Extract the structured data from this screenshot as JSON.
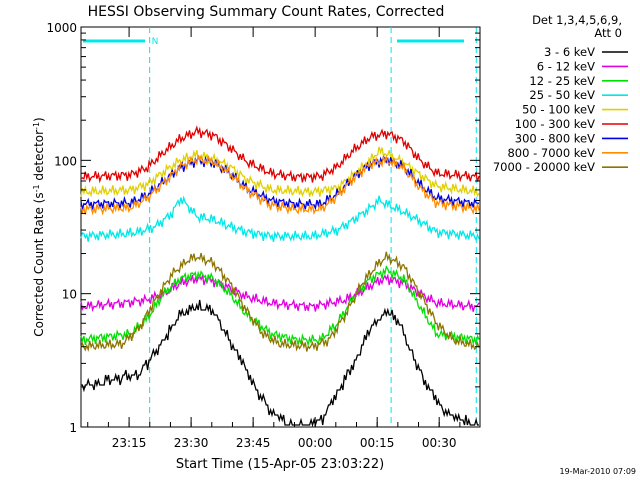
{
  "chart_data": {
    "type": "line",
    "title": "HESSI Observing Summary Count Rates, Corrected",
    "xlabel": "Start Time (15-Apr-05 23:03:22)",
    "ylabel_main": "Corrected Count Rate (s",
    "ylabel_sup1": "-1",
    "ylabel_mid": " detector",
    "ylabel_sup2": "-1",
    "ylabel_end": ")",
    "y_scale": "log",
    "ylim": [
      1,
      1000
    ],
    "xlim_minutes_after_start": [
      0,
      96.5
    ],
    "x_ticks": [
      {
        "label": "23:15",
        "minute": 11.63
      },
      {
        "label": "23:30",
        "minute": 26.63
      },
      {
        "label": "23:45",
        "minute": 41.63
      },
      {
        "label": "00:00",
        "minute": 56.63
      },
      {
        "label": "00:15",
        "minute": 71.63
      },
      {
        "label": "00:30",
        "minute": 86.63
      }
    ],
    "y_ticks": [
      {
        "label": "1",
        "value": 1
      },
      {
        "label": "10",
        "value": 10
      },
      {
        "label": "100",
        "value": 100
      },
      {
        "label": "1000",
        "value": 1000
      }
    ],
    "legend_header": [
      "Det 1,3,4,5,6,9,",
      "Att 0"
    ],
    "legend_position": "right",
    "flag_label": "N",
    "footer": "19-Mar-2010 07:09",
    "night_markers_minutes": [
      16.6,
      75.0,
      95.6
    ],
    "series": [
      {
        "name": "3 - 6 keV",
        "color": "#000000",
        "x": [
          0,
          14,
          20,
          24,
          28,
          32,
          35,
          38,
          42,
          46,
          52,
          58,
          62,
          66,
          70,
          74,
          77,
          80,
          84,
          88,
          96
        ],
        "y": [
          2,
          2.5,
          4.5,
          7,
          8,
          7.5,
          5,
          3.5,
          2,
          1.3,
          1,
          1.1,
          1.8,
          3,
          5.5,
          7.5,
          6,
          3.5,
          2,
          1.3,
          1
        ]
      },
      {
        "name": "6 - 12 keV",
        "color": "#e000e0",
        "x": [
          0,
          10,
          16,
          20,
          24,
          28,
          32,
          36,
          40,
          46,
          56,
          64,
          68,
          72,
          74,
          78,
          82,
          86,
          96
        ],
        "y": [
          8,
          8.5,
          9,
          10,
          12,
          13,
          12.5,
          11,
          9.5,
          8.5,
          8,
          9,
          10.5,
          12.5,
          13,
          12,
          10,
          8.5,
          8
        ]
      },
      {
        "name": "12 - 25 keV",
        "color": "#00e000",
        "x": [
          0,
          12,
          16,
          20,
          24,
          28,
          32,
          36,
          40,
          46,
          52,
          58,
          62,
          66,
          70,
          74,
          78,
          82,
          86,
          96
        ],
        "y": [
          4.5,
          5,
          6.5,
          10,
          13,
          14,
          13,
          10,
          7,
          5,
          4.5,
          4.5,
          6,
          9.5,
          13,
          15,
          13,
          8,
          5,
          4.5
        ]
      },
      {
        "name": "25 - 50 keV",
        "color": "#00e8e8",
        "x": [
          0,
          10,
          14,
          18,
          22,
          24,
          26,
          28,
          32,
          36,
          40,
          46,
          56,
          62,
          66,
          70,
          72,
          74,
          78,
          82,
          86,
          96
        ],
        "y": [
          27,
          28,
          29,
          32,
          40,
          52,
          45,
          38,
          36,
          32,
          29,
          27,
          27,
          30,
          36,
          44,
          50,
          47,
          41,
          35,
          29,
          27
        ]
      },
      {
        "name": "50 - 100 keV",
        "color": "#e0d000",
        "x": [
          0,
          12,
          16,
          20,
          24,
          28,
          32,
          36,
          40,
          46,
          56,
          62,
          66,
          70,
          72,
          74,
          78,
          82,
          86,
          96
        ],
        "y": [
          58,
          60,
          66,
          82,
          100,
          110,
          102,
          90,
          72,
          60,
          58,
          62,
          78,
          100,
          118,
          112,
          96,
          78,
          64,
          58
        ]
      },
      {
        "name": "100 - 300 keV",
        "color": "#e00000",
        "x": [
          0,
          12,
          16,
          20,
          24,
          28,
          32,
          36,
          40,
          46,
          52,
          58,
          62,
          66,
          70,
          74,
          78,
          82,
          86,
          96
        ],
        "y": [
          75,
          78,
          88,
          115,
          145,
          165,
          155,
          125,
          98,
          80,
          75,
          76,
          90,
          120,
          150,
          160,
          140,
          100,
          80,
          75
        ]
      },
      {
        "name": "300 - 800 keV",
        "color": "#0000e0",
        "x": [
          0,
          12,
          16,
          20,
          24,
          28,
          32,
          36,
          40,
          46,
          52,
          58,
          62,
          66,
          70,
          74,
          78,
          82,
          86,
          96
        ],
        "y": [
          47,
          48,
          55,
          70,
          88,
          100,
          96,
          80,
          62,
          50,
          47,
          47,
          56,
          75,
          94,
          102,
          90,
          66,
          52,
          47
        ]
      },
      {
        "name": "800 - 7000 keV",
        "color": "#ff8c00",
        "x": [
          0,
          12,
          16,
          20,
          24,
          28,
          32,
          36,
          40,
          46,
          52,
          58,
          62,
          66,
          70,
          74,
          78,
          82,
          86,
          96
        ],
        "y": [
          43,
          44,
          52,
          68,
          90,
          102,
          98,
          80,
          60,
          46,
          43,
          43,
          54,
          74,
          94,
          100,
          88,
          62,
          48,
          43
        ]
      },
      {
        "name": "7000 - 20000 keV",
        "color": "#8b7500",
        "x": [
          0,
          10,
          14,
          18,
          22,
          26,
          28,
          32,
          36,
          40,
          44,
          48,
          56,
          60,
          64,
          68,
          72,
          74,
          78,
          82,
          86,
          90,
          96
        ],
        "y": [
          4,
          4.2,
          5.5,
          9,
          14,
          18,
          19,
          17,
          12,
          7.5,
          5,
          4.2,
          4,
          4.5,
          7,
          12,
          17,
          19,
          16,
          10,
          6,
          4.5,
          4
        ]
      }
    ]
  }
}
